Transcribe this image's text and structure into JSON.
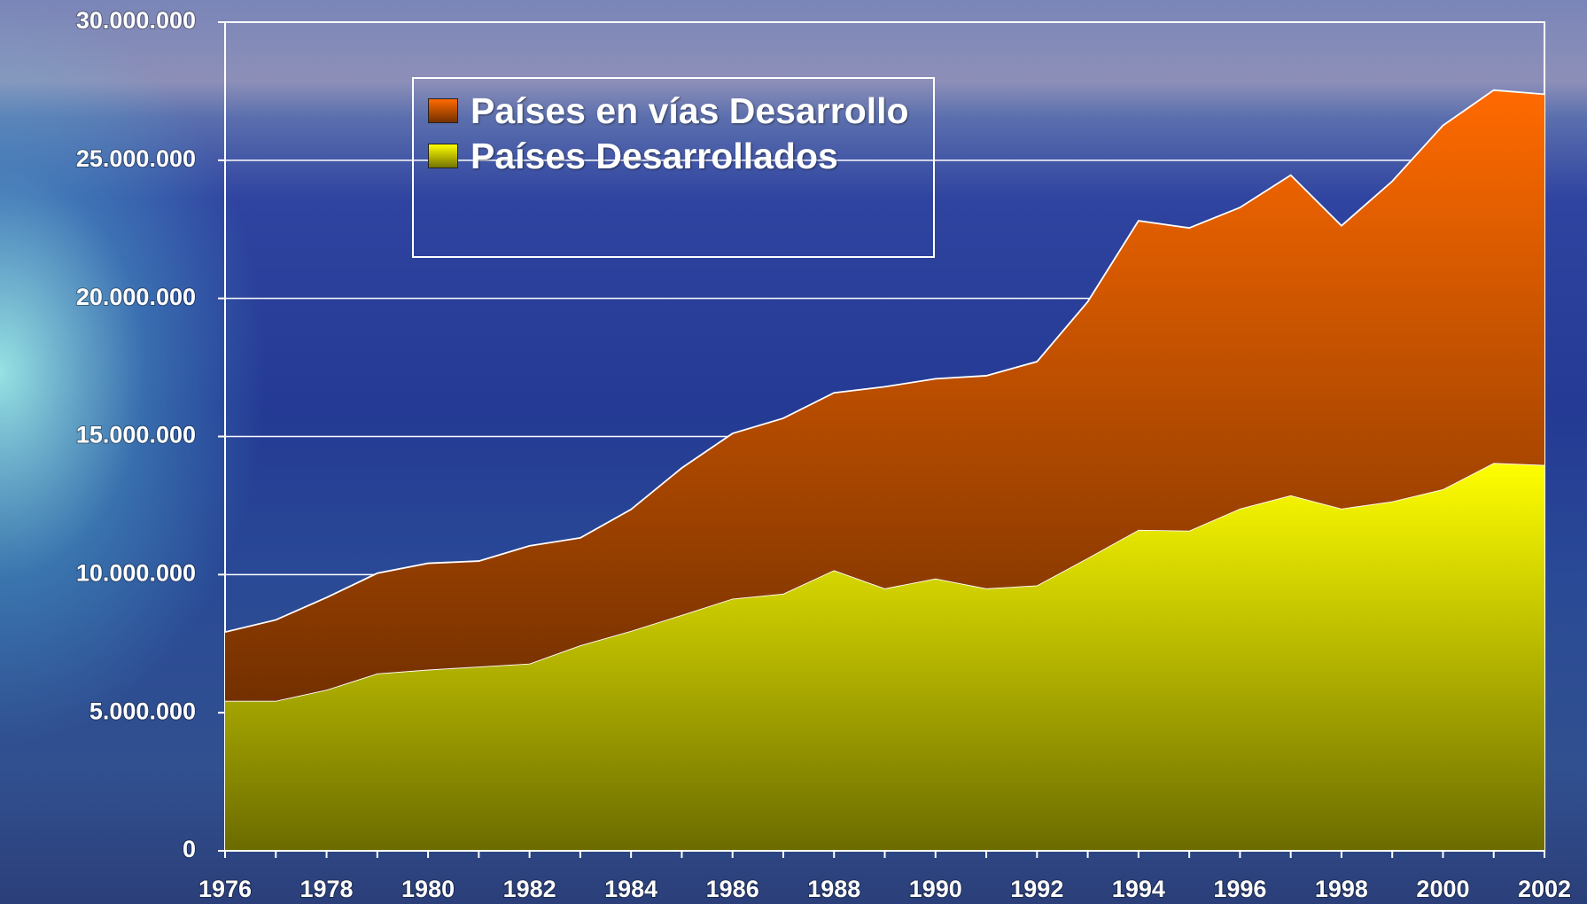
{
  "chart_data": {
    "type": "stacked-area",
    "x": [
      1976,
      1977,
      1978,
      1979,
      1980,
      1981,
      1982,
      1983,
      1984,
      1985,
      1986,
      1987,
      1988,
      1989,
      1990,
      1991,
      1992,
      1993,
      1994,
      1995,
      1996,
      1997,
      1998,
      1999,
      2000,
      2001,
      2002
    ],
    "series": [
      {
        "name": "Países en vías Desarrollo",
        "color": "#ff6a00",
        "values": [
          2490000,
          2930000,
          3340000,
          3630000,
          3850000,
          3820000,
          4260000,
          3890000,
          4400000,
          5320000,
          5980000,
          6350000,
          6420000,
          7300000,
          7230000,
          7700000,
          8100000,
          9280000,
          11190000,
          10960000,
          10900000,
          11590000,
          10240000,
          11590000,
          13170000,
          13500000,
          13420000
        ]
      },
      {
        "name": "Países Desarrollados",
        "color": "#ffff00",
        "values": [
          5430000,
          5430000,
          5830000,
          6420000,
          6560000,
          6670000,
          6780000,
          7440000,
          7960000,
          8540000,
          9130000,
          9310000,
          10160000,
          9500000,
          9860000,
          9500000,
          9610000,
          10600000,
          11620000,
          11590000,
          12390000,
          12870000,
          12390000,
          12650000,
          13090000,
          14040000,
          13970000
        ]
      }
    ],
    "xlim": [
      1976,
      2002
    ],
    "xticks": [
      1976,
      1978,
      1980,
      1982,
      1984,
      1986,
      1988,
      1990,
      1992,
      1994,
      1996,
      1998,
      2000,
      2002
    ],
    "ylim": [
      0,
      30000000
    ],
    "yticks": [
      0,
      {
        "value": 5000000,
        "label": "5.000.000"
      },
      {
        "value": 10000000,
        "label": "10.000.000"
      },
      {
        "value": 15000000,
        "label": "15.000.000"
      },
      {
        "value": 20000000,
        "label": "20.000.000"
      },
      {
        "value": 25000000,
        "label": "25.000.000"
      },
      {
        "value": 30000000,
        "label": "30.000.000"
      }
    ],
    "grid": true
  }
}
